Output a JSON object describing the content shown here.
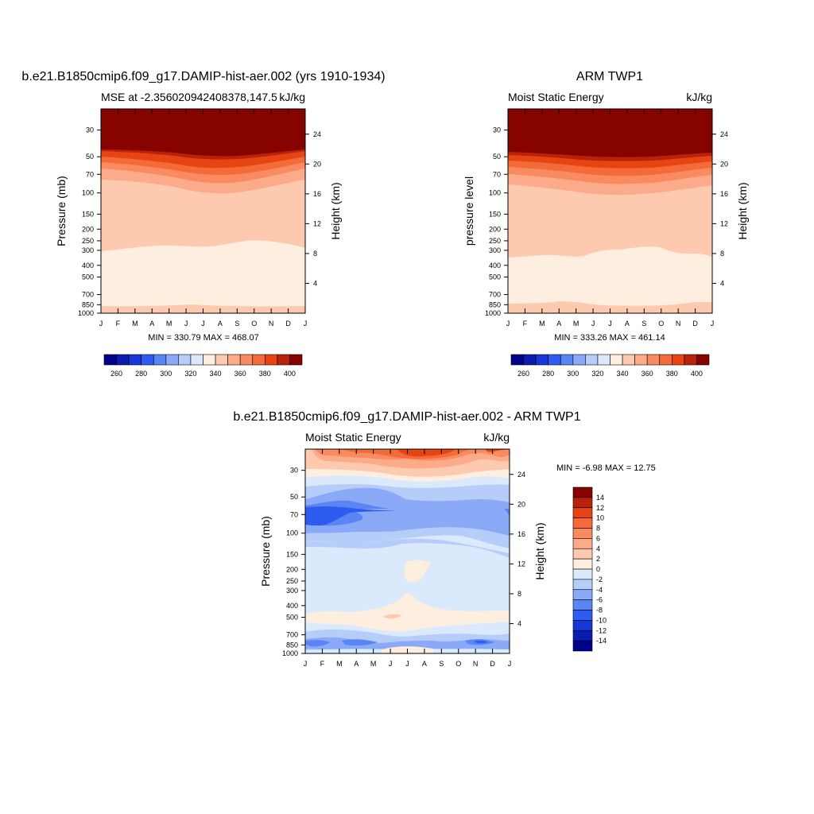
{
  "chart_data": [
    {
      "type": "heatmap",
      "title": "b.e21.B1850cmip6.f09_g17.DAMIP-hist-aer.002 (yrs 1910-1934)",
      "left_string": "MSE at -2.356020942408378,147.5",
      "right_string": "kJ/kg",
      "ylabel": "Pressure (mb)",
      "y2label": "Height (km)",
      "x_ticks": [
        "J",
        "F",
        "M",
        "A",
        "M",
        "J",
        "J",
        "A",
        "S",
        "O",
        "N",
        "D",
        "J"
      ],
      "y_ticks": [
        30,
        50,
        70,
        100,
        150,
        200,
        250,
        300,
        400,
        500,
        700,
        850,
        1000
      ],
      "y2_ticks": [
        4,
        8,
        12,
        16,
        20,
        24
      ],
      "stats": "MIN = 330.79 MAX = 468.07",
      "colorbar": {
        "orientation": "horizontal",
        "labels": [
          260,
          280,
          300,
          320,
          340,
          360,
          380,
          400
        ],
        "colors": [
          "#00008a",
          "#0a1bb0",
          "#1638d6",
          "#2e5cf0",
          "#5a86f5",
          "#8aaaf7",
          "#b6cdfa",
          "#dbe9fd",
          "#fdeedf",
          "#fdcab0",
          "#fcab8a",
          "#fa8a5f",
          "#f46a39",
          "#e64413",
          "#b8220a",
          "#860300"
        ]
      }
    },
    {
      "type": "heatmap",
      "title": "ARM TWP1",
      "left_string": "Moist Static Energy",
      "right_string": "kJ/kg",
      "ylabel": "pressure level",
      "y2label": "Height (km)",
      "x_ticks": [
        "J",
        "F",
        "M",
        "A",
        "M",
        "J",
        "J",
        "A",
        "S",
        "O",
        "N",
        "D",
        "J"
      ],
      "y_ticks": [
        30,
        50,
        70,
        100,
        150,
        200,
        250,
        300,
        400,
        500,
        700,
        850,
        1000
      ],
      "y2_ticks": [
        4,
        8,
        12,
        16,
        20,
        24
      ],
      "stats": "MIN = 333.26 MAX = 461.14",
      "colorbar": {
        "orientation": "horizontal",
        "labels": [
          260,
          280,
          300,
          320,
          340,
          360,
          380,
          400
        ],
        "colors": [
          "#00008a",
          "#0a1bb0",
          "#1638d6",
          "#2e5cf0",
          "#5a86f5",
          "#8aaaf7",
          "#b6cdfa",
          "#dbe9fd",
          "#fdeedf",
          "#fdcab0",
          "#fcab8a",
          "#fa8a5f",
          "#f46a39",
          "#e64413",
          "#b8220a",
          "#860300"
        ]
      }
    },
    {
      "type": "heatmap",
      "title": "b.e21.B1850cmip6.f09_g17.DAMIP-hist-aer.002 - ARM TWP1",
      "left_string": "Moist Static Energy",
      "right_string": "kJ/kg",
      "ylabel": "Pressure (mb)",
      "y2label": "Height (km)",
      "x_ticks": [
        "J",
        "F",
        "M",
        "A",
        "M",
        "J",
        "J",
        "A",
        "S",
        "O",
        "N",
        "D",
        "J"
      ],
      "y_ticks": [
        30,
        50,
        70,
        100,
        150,
        200,
        250,
        300,
        400,
        500,
        700,
        850,
        1000
      ],
      "y2_ticks": [
        4,
        8,
        12,
        16,
        20,
        24
      ],
      "stats": "MIN =  -6.98 MAX =  12.75",
      "colorbar": {
        "orientation": "vertical",
        "labels": [
          14,
          12,
          10,
          8,
          6,
          4,
          2,
          0,
          -2,
          -4,
          -6,
          -8,
          -10,
          -12,
          -14
        ],
        "colors": [
          "#860300",
          "#b8220a",
          "#e64413",
          "#f46a39",
          "#fa8a5f",
          "#fcab8a",
          "#fdcab0",
          "#fdeedf",
          "#dbe9fd",
          "#b6cdfa",
          "#8aaaf7",
          "#5a86f5",
          "#2e5cf0",
          "#1638d6",
          "#0a1bb0",
          "#00008a"
        ]
      }
    }
  ]
}
